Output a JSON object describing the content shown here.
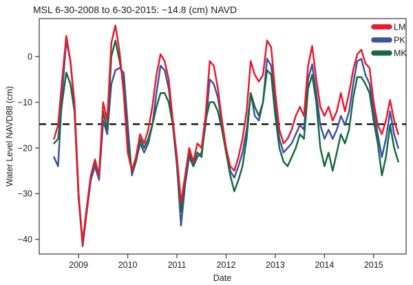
{
  "title": "MSL 6-30-2008 to 6-30-2015: −14.8 (cm) NAVD",
  "chart_data": {
    "type": "line",
    "title": "MSL 6-30-2008 to 6-30-2015: −14.8 (cm) NAVD",
    "xlabel": "Date",
    "ylabel": "Water Level NAVD88 (cm)",
    "grid": false,
    "xlim": [
      2008.2,
      2015.66
    ],
    "ylim": [
      -43.2,
      8.3
    ],
    "xticks": {
      "values": [
        2009,
        2010,
        2011,
        2012,
        2013,
        2014,
        2015
      ],
      "labels": [
        "2009",
        "2010",
        "2011",
        "2012",
        "2013",
        "2014",
        "2015"
      ]
    },
    "yticks": {
      "values": [
        0,
        -10,
        -20,
        -30,
        -40
      ],
      "labels": [
        "0",
        "−10",
        "−20",
        "−30",
        "−40"
      ]
    },
    "reference_line": {
      "name": "MSL",
      "value": -14.8,
      "style": "dashed",
      "color": "#000000"
    },
    "legend": {
      "position": "top-right",
      "entries": [
        {
          "name": "LM",
          "color": "#e8192c"
        },
        {
          "name": "PK",
          "color": "#3a53a4"
        },
        {
          "name": "MK",
          "color": "#17693d"
        }
      ]
    },
    "x_start": 2008.5,
    "x_step_years": 0.0833333,
    "series": [
      {
        "name": "LM",
        "color": "#e8192c",
        "values": [
          -18,
          -15,
          -5,
          4.5,
          -1,
          -10,
          -30,
          -41,
          -33,
          -26,
          -22.5,
          -26,
          -10,
          -14,
          3,
          6.8,
          1,
          -8,
          -21,
          -25,
          -22,
          -17,
          -19,
          -16,
          -11,
          -4,
          0.5,
          -1,
          -5,
          -14,
          -22,
          -32,
          -26,
          -20,
          -23,
          -19,
          -20,
          -13,
          -1,
          -2,
          -7,
          -14,
          -20,
          -24,
          -25,
          -22,
          -18,
          -12,
          -1,
          -4,
          -5.5,
          -4,
          3.5,
          2,
          -8,
          -16,
          -19,
          -18,
          -16,
          -13,
          -11,
          -13,
          -2,
          2.3,
          -5,
          -11,
          -13,
          -11,
          -14,
          -12,
          -8,
          -12,
          -8,
          -3,
          0.5,
          1.5,
          -1.5,
          -2.5,
          -10,
          -15,
          -17,
          -14,
          -9.5,
          -14,
          -17
        ]
      },
      {
        "name": "PK",
        "color": "#3a53a4",
        "values": [
          -22,
          -24,
          -8,
          3.5,
          -1,
          -11,
          -31,
          -41.5,
          -34,
          -27,
          -24,
          -27,
          -14,
          -17,
          -6,
          -3,
          -2.5,
          -3.5,
          -15,
          -26,
          -23,
          -19,
          -21,
          -19,
          -15,
          -8,
          -2,
          -3,
          -7,
          -15,
          -24,
          -37,
          -28,
          -22,
          -24,
          -22,
          -21,
          -15,
          -5,
          -6,
          -9,
          -15,
          -21,
          -25,
          -26.5,
          -24,
          -21,
          -16,
          -8,
          -13,
          -14,
          -10,
          -0.5,
          -2,
          -11,
          -18,
          -21,
          -20,
          -19,
          -17,
          -15,
          -16,
          -5,
          -1.7,
          -8,
          -15,
          -18,
          -16,
          -18,
          -16,
          -13,
          -15,
          -12,
          -6,
          -1,
          -0.5,
          -4,
          -6,
          -12,
          -17,
          -22,
          -18,
          -12,
          -17,
          -20
        ]
      },
      {
        "name": "MK",
        "color": "#17693d",
        "values": [
          -19,
          -18,
          -10,
          -3.5,
          -6,
          -12,
          -31,
          -40.5,
          -33,
          -26,
          -23,
          -26,
          -12,
          -16,
          0,
          3.5,
          -1,
          -6,
          -19,
          -25,
          -23,
          -18,
          -20,
          -18,
          -15,
          -11,
          -8,
          -8,
          -10,
          -15,
          -23,
          -34,
          -27,
          -21,
          -24,
          -21,
          -22,
          -14,
          -10,
          -10,
          -12,
          -16,
          -21,
          -26,
          -29.5,
          -27,
          -24,
          -18,
          -8,
          -11,
          -13,
          -10,
          -3,
          -4,
          -13,
          -20,
          -23,
          -24,
          -22,
          -20,
          -17,
          -18,
          -7,
          -4,
          -10,
          -20,
          -24,
          -21,
          -25,
          -21,
          -17,
          -19,
          -16,
          -9,
          -4.5,
          -4.5,
          -6,
          -8,
          -14,
          -19,
          -26,
          -22,
          -15,
          -20,
          -23
        ]
      }
    ]
  }
}
